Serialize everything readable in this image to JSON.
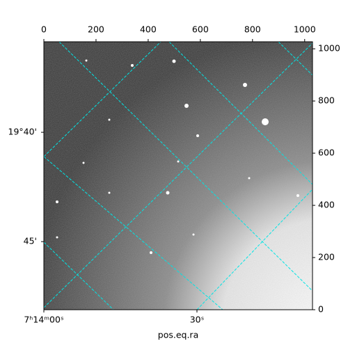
{
  "chart_data": {
    "type": "image",
    "xlabel": "pos.eq.ra",
    "xlim": [
      0,
      1030
    ],
    "xticks": [
      0,
      200,
      400,
      600,
      800,
      1000
    ],
    "ylim": [
      0,
      1027
    ],
    "yticks": [
      0,
      200,
      400,
      600,
      800,
      1000
    ],
    "raticks": [
      {
        "value": 0,
        "label": "7ʰ14ᵐ00ˢ"
      },
      {
        "value": 587,
        "label": "30ˢ"
      }
    ],
    "decticks": [
      {
        "value": 680,
        "label": "19°40'"
      },
      {
        "value": 261,
        "label": "45'"
      }
    ],
    "grid": true,
    "grid_color": "#00e5e5"
  }
}
